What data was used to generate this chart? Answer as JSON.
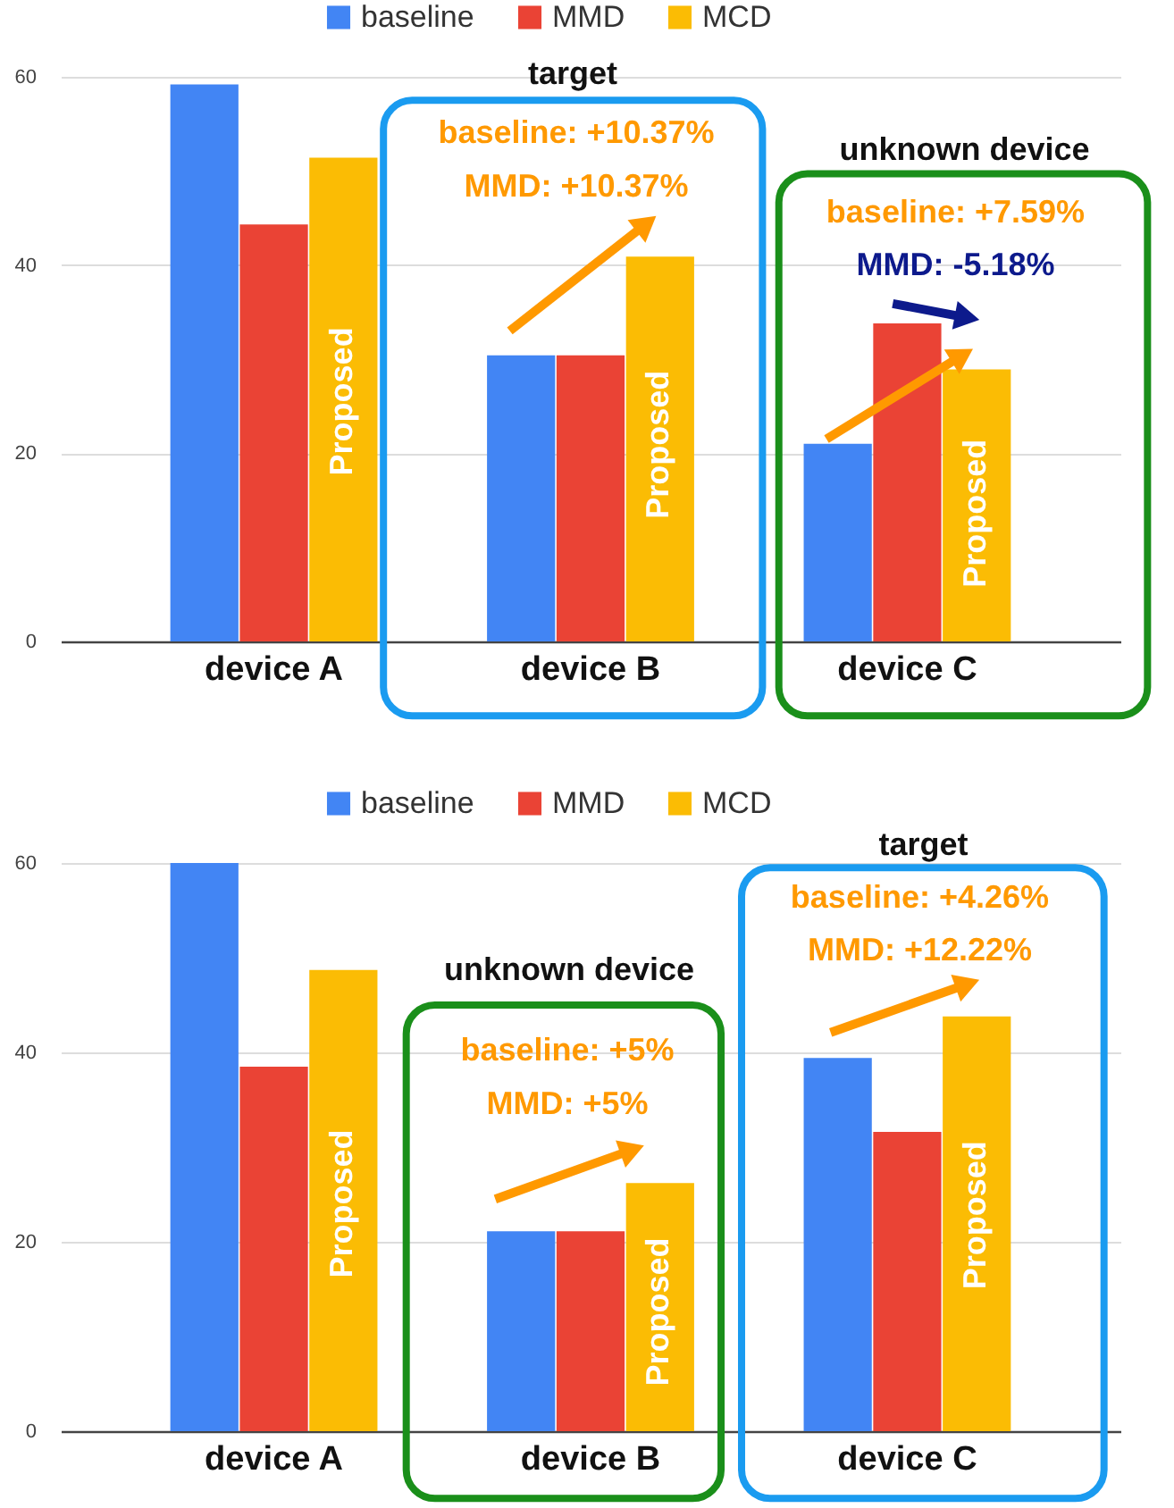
{
  "chart_data": [
    {
      "type": "bar",
      "categories": [
        "device A",
        "device B",
        "device C"
      ],
      "series": [
        {
          "name": "baseline",
          "color": "#4285f4",
          "values": [
            59.2,
            30.4,
            21.0
          ]
        },
        {
          "name": "MMD",
          "color": "#ea4335",
          "values": [
            44.3,
            30.4,
            33.8
          ]
        },
        {
          "name": "MCD",
          "color": "#fbbc04",
          "values": [
            51.4,
            40.9,
            28.9
          ]
        }
      ],
      "ylim": [
        0,
        60
      ],
      "yticks": [
        0,
        20,
        40,
        60
      ],
      "grid": "y",
      "legend": "top",
      "annotations": [
        "target",
        "baseline: +10.37%",
        "MMD: +10.37%",
        "unknown device",
        "baseline: +7.59%",
        "MMD: -5.18%",
        "Proposed",
        "Proposed",
        "Proposed"
      ]
    },
    {
      "type": "bar",
      "categories": [
        "device A",
        "device B",
        "device C"
      ],
      "series": [
        {
          "name": "baseline",
          "color": "#4285f4",
          "values": [
            60,
            21.1,
            39.4
          ]
        },
        {
          "name": "MMD",
          "color": "#ea4335",
          "values": [
            38.5,
            21.1,
            31.6
          ]
        },
        {
          "name": "MCD",
          "color": "#fbbc04",
          "values": [
            48.7,
            26.2,
            43.8
          ]
        }
      ],
      "ylim": [
        0,
        60
      ],
      "yticks": [
        0,
        20,
        40,
        60
      ],
      "grid": "y",
      "legend": "top",
      "annotations": [
        "unknown device",
        "baseline: +5%",
        "MMD: +5%",
        "target",
        "baseline: +4.26%",
        "MMD: +12.22%",
        "Proposed",
        "Proposed",
        "Proposed"
      ]
    }
  ]
}
